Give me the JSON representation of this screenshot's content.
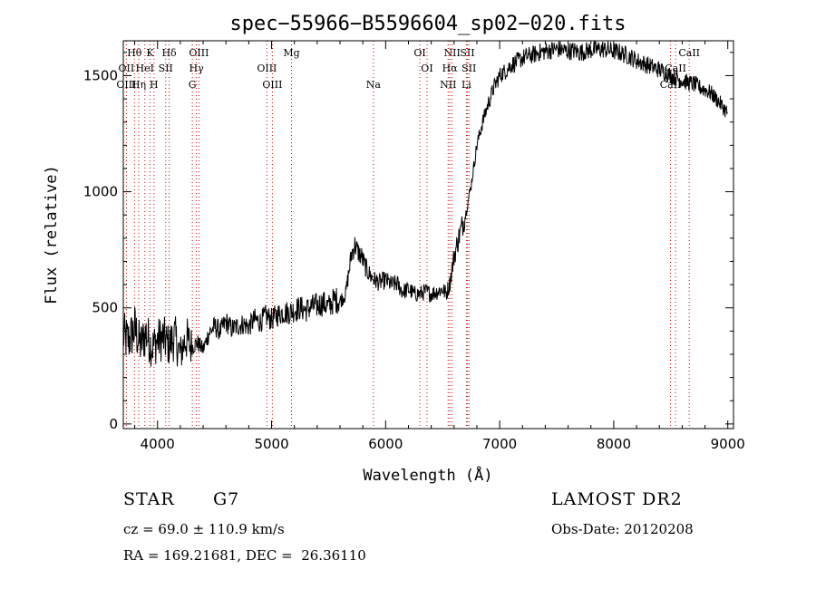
{
  "chart_data": {
    "type": "line",
    "title": "spec−55966−B5596604_sp02−020.fits",
    "xlabel": "Wavelength (Å)",
    "ylabel": "Flux (relative)",
    "xlim": [
      3700,
      9050
    ],
    "ylim": [
      -20,
      1650
    ],
    "xticks": [
      4000,
      5000,
      6000,
      7000,
      8000,
      9000
    ],
    "yticks": [
      0,
      500,
      1000,
      1500
    ],
    "grid": false,
    "line_color": "#000000",
    "marker_color": "#cc0000",
    "series": [
      {
        "x": [
          3700,
          3750,
          3800,
          3850,
          3900,
          3950,
          4000,
          4050,
          4100,
          4150,
          4200,
          4250,
          4300,
          4350,
          4400,
          4450,
          4500,
          4550,
          4600,
          4650,
          4700,
          4750,
          4800,
          4850,
          4900,
          4950,
          5000,
          5050,
          5100,
          5150,
          5200,
          5250,
          5300,
          5350,
          5400,
          5450,
          5500,
          5550,
          5600,
          5650,
          5700,
          5730,
          5760,
          5790,
          5820,
          5850,
          5900,
          5950,
          6000,
          6050,
          6100,
          6150,
          6200,
          6250,
          6300,
          6350,
          6400,
          6450,
          6500,
          6530,
          6560,
          6580,
          6600,
          6650,
          6700,
          6750,
          6800,
          6850,
          6900,
          6950,
          7000,
          7050,
          7100,
          7150,
          7200,
          7250,
          7300,
          7350,
          7400,
          7450,
          7500,
          7550,
          7600,
          7650,
          7700,
          7750,
          7800,
          7850,
          7900,
          7950,
          8000,
          8050,
          8100,
          8150,
          8200,
          8250,
          8300,
          8350,
          8400,
          8450,
          8500,
          8550,
          8600,
          8650,
          8700,
          8750,
          8800,
          8850,
          8900,
          8950,
          8980,
          9000
        ],
        "y": [
          380,
          360,
          410,
          340,
          390,
          330,
          360,
          370,
          340,
          375,
          300,
          370,
          330,
          350,
          320,
          390,
          420,
          400,
          440,
          410,
          420,
          430,
          420,
          450,
          440,
          465,
          450,
          470,
          480,
          480,
          490,
          500,
          490,
          505,
          510,
          520,
          505,
          535,
          530,
          560,
          730,
          770,
          740,
          720,
          680,
          650,
          620,
          610,
          620,
          600,
          605,
          570,
          580,
          560,
          560,
          570,
          560,
          570,
          580,
          560,
          600,
          660,
          720,
          820,
          900,
          1030,
          1200,
          1300,
          1380,
          1450,
          1500,
          1520,
          1545,
          1560,
          1575,
          1585,
          1590,
          1600,
          1605,
          1610,
          1615,
          1610,
          1605,
          1608,
          1600,
          1605,
          1610,
          1612,
          1615,
          1610,
          1605,
          1600,
          1590,
          1580,
          1565,
          1555,
          1545,
          1535,
          1525,
          1515,
          1500,
          1490,
          1480,
          1470,
          1465,
          1450,
          1440,
          1425,
          1400,
          1370,
          1350,
          1340
        ]
      }
    ],
    "line_markers": [
      {
        "label": "Hθ",
        "x": 3798,
        "row": 1
      },
      {
        "label": "K",
        "x": 3934,
        "row": 1
      },
      {
        "label": "Hδ",
        "x": 4102,
        "row": 1
      },
      {
        "label": "OII",
        "x": 3727,
        "row": 2
      },
      {
        "label": "HeI",
        "x": 3889,
        "row": 2
      },
      {
        "label": "SII",
        "x": 4072,
        "row": 2
      },
      {
        "label": "OIII",
        "x": 3727,
        "row": 3
      },
      {
        "label": "Hη",
        "x": 3835,
        "row": 3
      },
      {
        "label": "H",
        "x": 3969,
        "row": 3
      },
      {
        "label": "OIII",
        "x": 4363,
        "row": 1
      },
      {
        "label": "Hγ",
        "x": 4341,
        "row": 2
      },
      {
        "label": "G",
        "x": 4305,
        "row": 3
      },
      {
        "label": "Mg",
        "x": 5175,
        "row": 1
      },
      {
        "label": "OIII",
        "x": 4959,
        "row": 2
      },
      {
        "label": "OIII",
        "x": 5007,
        "row": 3
      },
      {
        "label": "Na",
        "x": 5893,
        "row": 3
      },
      {
        "label": "OI",
        "x": 6300,
        "row": 1
      },
      {
        "label": "OI",
        "x": 6363,
        "row": 2
      },
      {
        "label": "NII",
        "x": 6583,
        "row": 1
      },
      {
        "label": "SII",
        "x": 6717,
        "row": 1
      },
      {
        "label": "Hα",
        "x": 6563,
        "row": 2
      },
      {
        "label": "SII",
        "x": 6731,
        "row": 2
      },
      {
        "label": "NII",
        "x": 6548,
        "row": 3
      },
      {
        "label": "Li",
        "x": 6708,
        "row": 3
      },
      {
        "label": "CaII",
        "x": 8662,
        "row": 1
      },
      {
        "label": "CaII",
        "x": 8542,
        "row": 2
      },
      {
        "label": "CaII",
        "x": 8498,
        "row": 3
      }
    ]
  },
  "info": {
    "object_class": "STAR",
    "subclass": "G7",
    "survey": "LAMOST DR2",
    "redshift": "cz = 69.0 ± 110.9 km/s",
    "obs_date": "Obs-Date: 20120208",
    "coords": "RA = 169.21681, DEC =  26.36110"
  }
}
